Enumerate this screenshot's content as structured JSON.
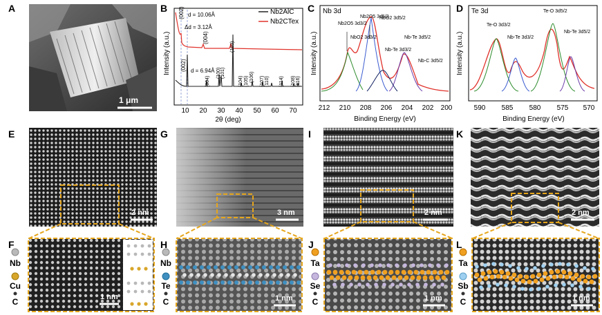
{
  "panels": {
    "A": {
      "label": "A",
      "scale": "1 μm"
    },
    "B": {
      "label": "B",
      "xlabel": "2θ (deg)",
      "ylabel": "Intensity (a.u.)",
      "xticks": [
        "10",
        "20",
        "30",
        "40",
        "50",
        "60",
        "70"
      ],
      "legend": [
        "Nb2AlC",
        "Nb2CTex"
      ],
      "annot_d1": "d = 10.06Å",
      "annot_dd": "Δd = 3.12Å",
      "annot_d2": "d = 6.94Å",
      "peaks_top": [
        "(002)",
        "(004)"
      ],
      "peaks_bottom": [
        "(002)",
        "(004)",
        "(100)",
        "(101)",
        "(103)",
        "(104)",
        "(105)",
        "(106)",
        "(107)",
        "(110)",
        "(114)",
        "(108)",
        "(116)"
      ]
    },
    "C": {
      "label": "C",
      "title": "Nb 3d",
      "xlabel": "Binding Energy  (eV)",
      "ylabel": "Intensity (a.u.)",
      "xticks": [
        "212",
        "210",
        "208",
        "206",
        "204",
        "202",
        "200"
      ],
      "peaks": [
        "Nb2O5 3d3/2",
        "NbO2 3d3/2",
        "Nb2O5 3d5/2",
        "NbO2 3d5/2",
        "Nb-Te 3d3/2",
        "Nb-Te 3d5/2",
        "Nb-C 3d5/2"
      ]
    },
    "D": {
      "label": "D",
      "title": "Te 3d",
      "xlabel": "Binding Energy (eV)",
      "ylabel": "Intensity (a.u.)",
      "xticks": [
        "590",
        "585",
        "580",
        "575",
        "570"
      ],
      "peaks": [
        "Te-O 3d3/2",
        "Nb-Te 3d3/2",
        "Te-O 3d5/2",
        "Nb-Te 3d5/2"
      ]
    },
    "E": {
      "label": "E",
      "scale": "2 nm"
    },
    "G": {
      "label": "G",
      "scale": "3 nm"
    },
    "I": {
      "label": "I",
      "scale": "2 nm"
    },
    "K": {
      "label": "K",
      "scale": "2 nm"
    },
    "F": {
      "label": "F",
      "scale": "1 nm",
      "elements": [
        "Nb",
        "Cu",
        "C"
      ]
    },
    "H": {
      "label": "H",
      "scale": "1 nm",
      "elements": [
        "Nb",
        "Te",
        "C"
      ]
    },
    "J": {
      "label": "J",
      "scale": "1 nm",
      "elements": [
        "Ta",
        "Se",
        "C"
      ]
    },
    "L": {
      "label": "L",
      "scale": "1 nm",
      "elements": [
        "Ta",
        "Sb",
        "C"
      ]
    }
  },
  "colors": {
    "accent_dash": "#e6a61c",
    "nb_gray": "#b9b9b9",
    "cu_gold": "#d7a62a",
    "te_blue": "#3f8fc0",
    "ta_orange": "#f0a020",
    "se_lavender": "#c6b7de",
    "sb_lightblue": "#9fd0f0",
    "xrd_black": "#222222",
    "xrd_red": "#e0322b"
  }
}
